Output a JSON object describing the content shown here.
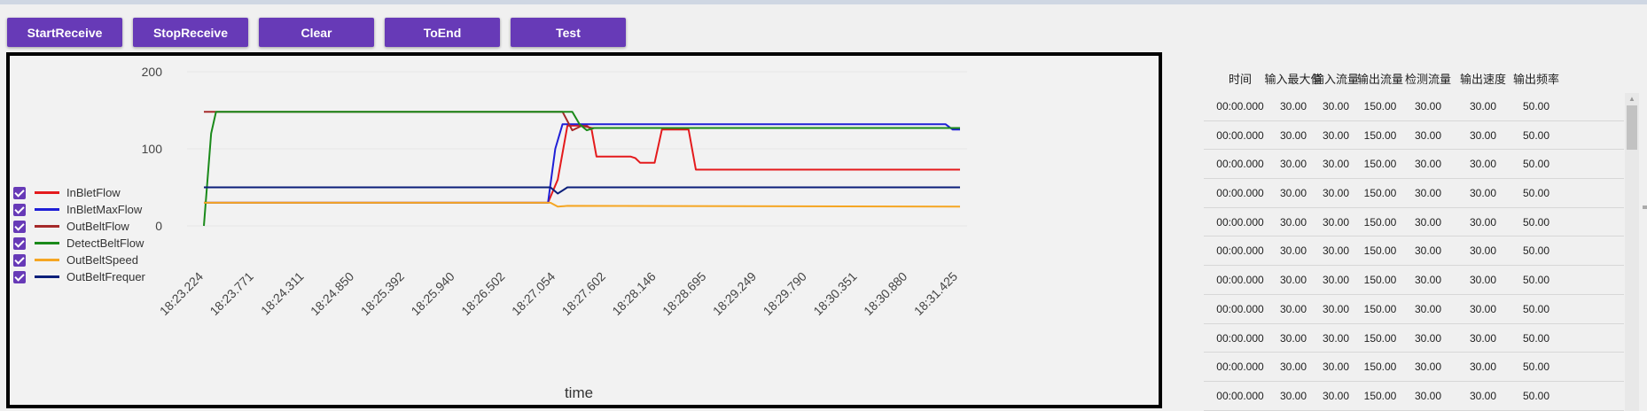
{
  "toolbar": {
    "buttons": [
      "StartReceive",
      "StopReceive",
      "Clear",
      "ToEnd",
      "Test"
    ]
  },
  "chart_data": {
    "type": "line",
    "xlabel": "time",
    "ylabel": "",
    "ylim": [
      -40,
      200
    ],
    "yticks": [
      0,
      100,
      200
    ],
    "x": [
      "18:23.224",
      "18:23.771",
      "18:24.311",
      "18:24.850",
      "18:25.392",
      "18:25.940",
      "18:26.502",
      "18:27.054",
      "18:27.602",
      "18:28.146",
      "18:28.695",
      "18:29.249",
      "18:29.790",
      "18:30.351",
      "18:30.880",
      "18:31.425"
    ],
    "legend_position": "left",
    "series": [
      {
        "name": "InBletFlow",
        "color": "#e41a1c",
        "points": [
          [
            0,
            30
          ],
          [
            7.1,
            30
          ],
          [
            7.3,
            60
          ],
          [
            7.5,
            130
          ],
          [
            7.9,
            130
          ],
          [
            8.0,
            125
          ],
          [
            8.1,
            90
          ],
          [
            8.8,
            90
          ],
          [
            8.9,
            88
          ],
          [
            9.0,
            82
          ],
          [
            9.3,
            82
          ],
          [
            9.45,
            125
          ],
          [
            10.0,
            125
          ],
          [
            10.15,
            73
          ],
          [
            15.6,
            73
          ]
        ]
      },
      {
        "name": "InBletMaxFlow",
        "color": "#1f1fd6",
        "points": [
          [
            0,
            30
          ],
          [
            7.1,
            30
          ],
          [
            7.25,
            100
          ],
          [
            7.4,
            132
          ],
          [
            15.3,
            132
          ],
          [
            15.45,
            125
          ],
          [
            15.6,
            125
          ]
        ]
      },
      {
        "name": "OutBeltFlow",
        "color": "#a52a2a",
        "points": [
          [
            0,
            148
          ],
          [
            0.4,
            148
          ],
          [
            7.4,
            148
          ],
          [
            7.6,
            124
          ],
          [
            7.8,
            130
          ],
          [
            8.0,
            127
          ],
          [
            15.3,
            127
          ],
          [
            15.6,
            127
          ]
        ]
      },
      {
        "name": "DetectBeltFlow",
        "color": "#1a8a1a",
        "points": [
          [
            0,
            0
          ],
          [
            0.15,
            120
          ],
          [
            0.25,
            148
          ],
          [
            7.6,
            148
          ],
          [
            7.75,
            132
          ],
          [
            7.9,
            124
          ],
          [
            8.05,
            127
          ],
          [
            15.6,
            127
          ]
        ]
      },
      {
        "name": "OutBeltSpeed",
        "color": "#f5a623",
        "points": [
          [
            0,
            30
          ],
          [
            7.15,
            30
          ],
          [
            7.3,
            25
          ],
          [
            7.5,
            26
          ],
          [
            15.6,
            25
          ]
        ]
      },
      {
        "name": "OutBeltFrequency",
        "color": "#0b1f7a",
        "points": [
          [
            0,
            50
          ],
          [
            7.15,
            50
          ],
          [
            7.3,
            42
          ],
          [
            7.5,
            50
          ],
          [
            15.6,
            50
          ]
        ]
      }
    ]
  },
  "legend": {
    "items": [
      {
        "label": "InBletFlow",
        "color": "#e41a1c"
      },
      {
        "label": "InBletMaxFlow",
        "color": "#1f1fd6"
      },
      {
        "label": "OutBeltFlow",
        "color": "#a52a2a"
      },
      {
        "label": "DetectBeltFlow",
        "color": "#1a8a1a"
      },
      {
        "label": "OutBeltSpeed",
        "color": "#f5a623"
      },
      {
        "label": "OutBeltFrequer",
        "color": "#0b1f7a"
      }
    ]
  },
  "table": {
    "columns": [
      "时间",
      "输入最大值",
      "输入流量",
      "输出流量",
      "检测流量",
      "输出速度",
      "输出频率"
    ],
    "rows": [
      [
        "00:00.000",
        "30.00",
        "30.00",
        "150.00",
        "30.00",
        "30.00",
        "50.00"
      ],
      [
        "00:00.000",
        "30.00",
        "30.00",
        "150.00",
        "30.00",
        "30.00",
        "50.00"
      ],
      [
        "00:00.000",
        "30.00",
        "30.00",
        "150.00",
        "30.00",
        "30.00",
        "50.00"
      ],
      [
        "00:00.000",
        "30.00",
        "30.00",
        "150.00",
        "30.00",
        "30.00",
        "50.00"
      ],
      [
        "00:00.000",
        "30.00",
        "30.00",
        "150.00",
        "30.00",
        "30.00",
        "50.00"
      ],
      [
        "00:00.000",
        "30.00",
        "30.00",
        "150.00",
        "30.00",
        "30.00",
        "50.00"
      ],
      [
        "00:00.000",
        "30.00",
        "30.00",
        "150.00",
        "30.00",
        "30.00",
        "50.00"
      ],
      [
        "00:00.000",
        "30.00",
        "30.00",
        "150.00",
        "30.00",
        "30.00",
        "50.00"
      ],
      [
        "00:00.000",
        "30.00",
        "30.00",
        "150.00",
        "30.00",
        "30.00",
        "50.00"
      ],
      [
        "00:00.000",
        "30.00",
        "30.00",
        "150.00",
        "30.00",
        "30.00",
        "50.00"
      ],
      [
        "00:00.000",
        "30.00",
        "30.00",
        "150.00",
        "30.00",
        "30.00",
        "50.00"
      ]
    ]
  }
}
